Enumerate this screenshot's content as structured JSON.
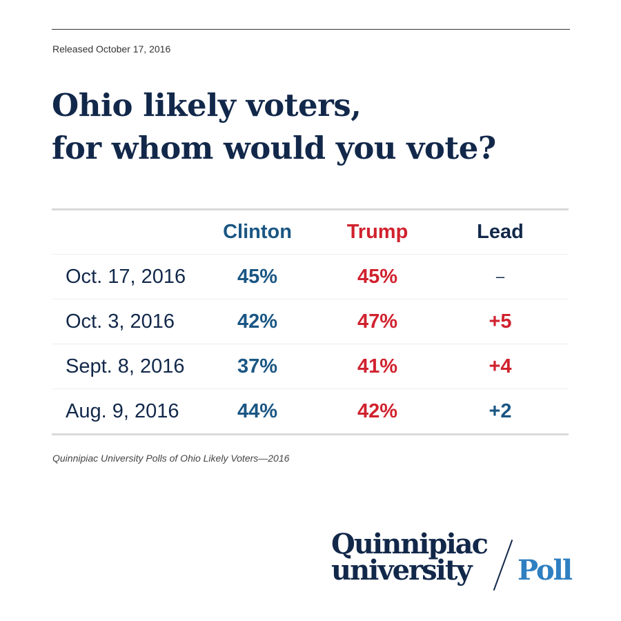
{
  "released": "Released October 17, 2016",
  "title_lines": [
    "Ohio likely voters,",
    "for whom would you vote?"
  ],
  "colors": {
    "clinton": "#1a5683",
    "trump": "#d0222e",
    "neutral": "#12284a",
    "poll_blue": "#2f7fc1"
  },
  "chart_data": {
    "type": "table",
    "columns": [
      "",
      "Clinton",
      "Trump",
      "Lead"
    ],
    "rows": [
      {
        "date": "Oct. 17, 2016",
        "clinton": "45%",
        "trump": "45%",
        "lead": "–",
        "lead_party": "none"
      },
      {
        "date": "Oct. 3, 2016",
        "clinton": "42%",
        "trump": "47%",
        "lead": "+5",
        "lead_party": "trump"
      },
      {
        "date": "Sept. 8, 2016",
        "clinton": "37%",
        "trump": "41%",
        "lead": "+4",
        "lead_party": "trump"
      },
      {
        "date": "Aug. 9, 2016",
        "clinton": "44%",
        "trump": "42%",
        "lead": "+2",
        "lead_party": "clinton"
      }
    ]
  },
  "footnote": "Quinnipiac University Polls of Ohio Likely Voters—2016",
  "logo": {
    "line1": "Quinnipiac",
    "line2": "university",
    "poll": "Poll"
  }
}
